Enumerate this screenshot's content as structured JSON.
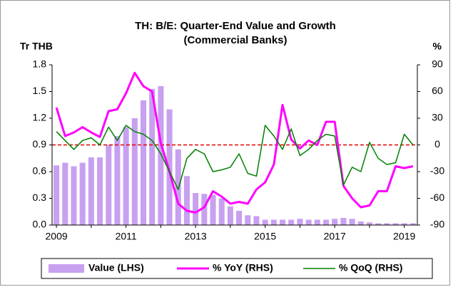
{
  "chart_data": {
    "type": "bar-line",
    "title": "TH: B/E: Quarter-End Value and Growth",
    "subtitle": "(Commercial Banks)",
    "y_label": "Tr THB",
    "y2_label": "%",
    "categories": [
      "2009",
      null,
      null,
      null,
      null,
      null,
      null,
      null,
      "2011",
      null,
      null,
      null,
      null,
      null,
      null,
      null,
      "2013",
      null,
      null,
      null,
      null,
      null,
      null,
      null,
      "2015",
      null,
      null,
      null,
      null,
      null,
      null,
      null,
      "2017",
      null,
      null,
      null,
      null,
      null,
      null,
      null,
      "2019",
      null
    ],
    "ylim": [
      0,
      1.8
    ],
    "yticks": [
      {
        "value": 0,
        "label": "0.0"
      },
      0.3,
      0.6,
      0.9,
      1.2,
      1.5,
      1.8
    ],
    "y2lim": [
      -90,
      90
    ],
    "y2ticks": [
      -90,
      -60,
      -30,
      0,
      30,
      60,
      90
    ],
    "y2_refline": 0,
    "refline_color": "#e00000",
    "legend": "bottom",
    "series": [
      {
        "name": "Value (LHS)",
        "type": "bar",
        "color": "#c8a0f0",
        "values": [
          0.67,
          0.7,
          0.66,
          0.7,
          0.76,
          0.76,
          0.9,
          1.0,
          1.1,
          1.2,
          1.4,
          1.53,
          1.56,
          1.3,
          0.85,
          0.55,
          0.36,
          0.35,
          0.34,
          0.3,
          0.21,
          0.16,
          0.11,
          0.1,
          0.06,
          0.06,
          0.06,
          0.06,
          0.07,
          0.06,
          0.06,
          0.06,
          0.07,
          0.08,
          0.07,
          0.04,
          0.03,
          0.02,
          0.02,
          0.02,
          0.02,
          0.02
        ]
      },
      {
        "name": "% YoY (RHS)",
        "type": "line",
        "axis": "y2",
        "color": "#ff00ff",
        "width": 3,
        "values": [
          42,
          10,
          14,
          20,
          14,
          9,
          38,
          40,
          58,
          81,
          66,
          60,
          2,
          -30,
          -66,
          -74,
          -76,
          -70,
          -52,
          -58,
          -66,
          -64,
          -66,
          -50,
          -42,
          -22,
          45,
          6,
          -4,
          5,
          0,
          26,
          26,
          -46,
          -60,
          -70,
          -68,
          -52,
          -52,
          -24,
          -26,
          -24
        ]
      },
      {
        "name": "% QoQ (RHS)",
        "type": "line",
        "axis": "y2",
        "color": "#008000",
        "width": 1.5,
        "values": [
          15,
          5,
          -5,
          5,
          8,
          0,
          20,
          5,
          22,
          15,
          12,
          5,
          -10,
          -30,
          -50,
          -15,
          -5,
          -10,
          -30,
          -28,
          -25,
          -10,
          -32,
          -35,
          22,
          10,
          -5,
          18,
          -12,
          -5,
          5,
          12,
          10,
          -45,
          -25,
          -30,
          3,
          -15,
          -22,
          -20,
          12,
          0
        ]
      }
    ]
  }
}
